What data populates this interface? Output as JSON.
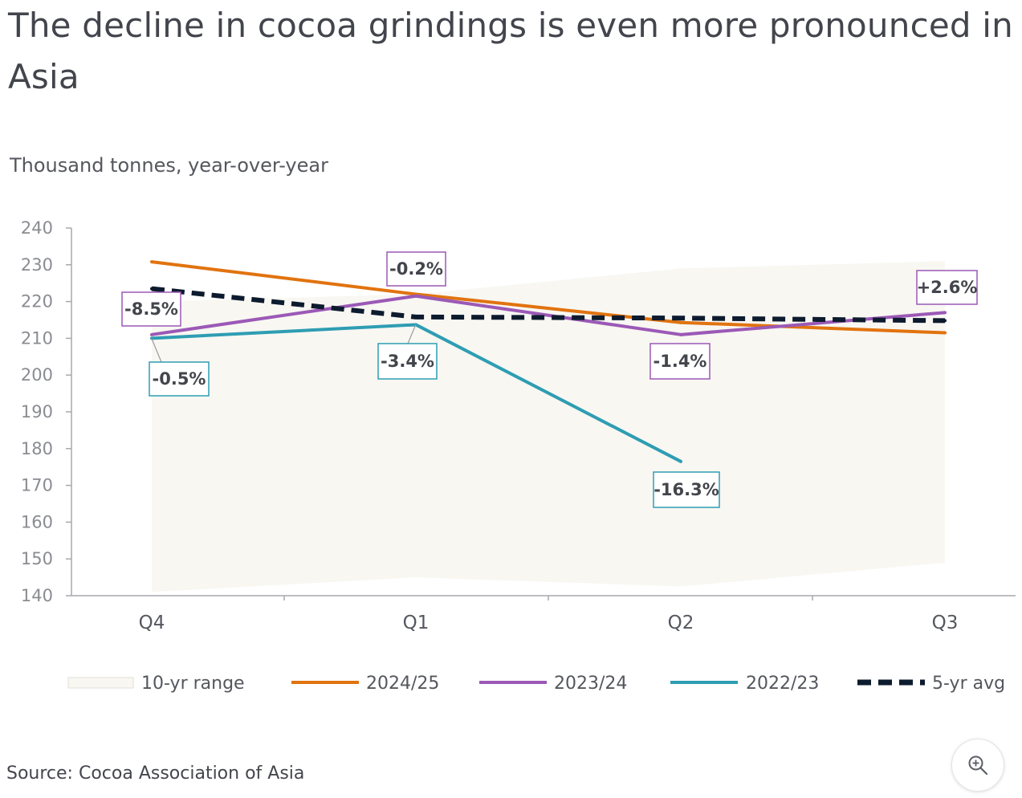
{
  "title": "The decline in cocoa grindings is even more pronounced in Asia",
  "subtitle": "Thousand tonnes, year-over-year",
  "source": "Source: Cocoa Association of Asia",
  "zoom_icon": "zoom-in-icon",
  "colors": {
    "range": "#f8f7f2",
    "s2024": "#e1730f",
    "s2023": "#9b59b6",
    "s2022": "#2e9db3",
    "avg": "#0d1b2e",
    "axis": "#a8a9ad"
  },
  "chart_data": {
    "type": "line",
    "title": "The decline in cocoa grindings is even more pronounced in Asia",
    "ylabel": "Thousand tonnes, year-over-year",
    "xlabel": "",
    "categories": [
      "Q4",
      "Q1",
      "Q2",
      "Q3"
    ],
    "ylim": [
      140,
      240
    ],
    "yticks": [
      140,
      150,
      160,
      170,
      180,
      190,
      200,
      210,
      220,
      230,
      240
    ],
    "range": {
      "name": "10-yr range",
      "low": [
        141,
        145,
        142.5,
        149
      ],
      "high": [
        220,
        222,
        229,
        231
      ]
    },
    "series": [
      {
        "key": "s2024",
        "name": "2024/25",
        "values": [
          230.8,
          222,
          214.3,
          211.5
        ],
        "dashed": false
      },
      {
        "key": "s2023",
        "name": "2023/24",
        "values": [
          211,
          221.5,
          211,
          217
        ],
        "dashed": false
      },
      {
        "key": "s2022",
        "name": "2022/23",
        "values": [
          210,
          213.7,
          176.5,
          null
        ],
        "dashed": false
      },
      {
        "key": "avg",
        "name": "5-yr avg",
        "values": [
          223.5,
          215.8,
          215.5,
          214.8
        ],
        "dashed": true
      }
    ],
    "annotations": [
      {
        "text": "-8.5%",
        "series": "s2023",
        "category": 0
      },
      {
        "text": "-0.5%",
        "series": "s2022",
        "category": 0
      },
      {
        "text": "-0.2%",
        "series": "s2023",
        "category": 1
      },
      {
        "text": "-3.4%",
        "series": "s2022",
        "category": 1
      },
      {
        "text": "-1.4%",
        "series": "s2023",
        "category": 2
      },
      {
        "text": "-16.3%",
        "series": "s2022",
        "category": 2
      },
      {
        "text": "+2.6%",
        "series": "s2023",
        "category": 3
      }
    ],
    "legend": [
      "10-yr range",
      "2024/25",
      "2023/24",
      "2022/23",
      "5-yr avg"
    ]
  }
}
